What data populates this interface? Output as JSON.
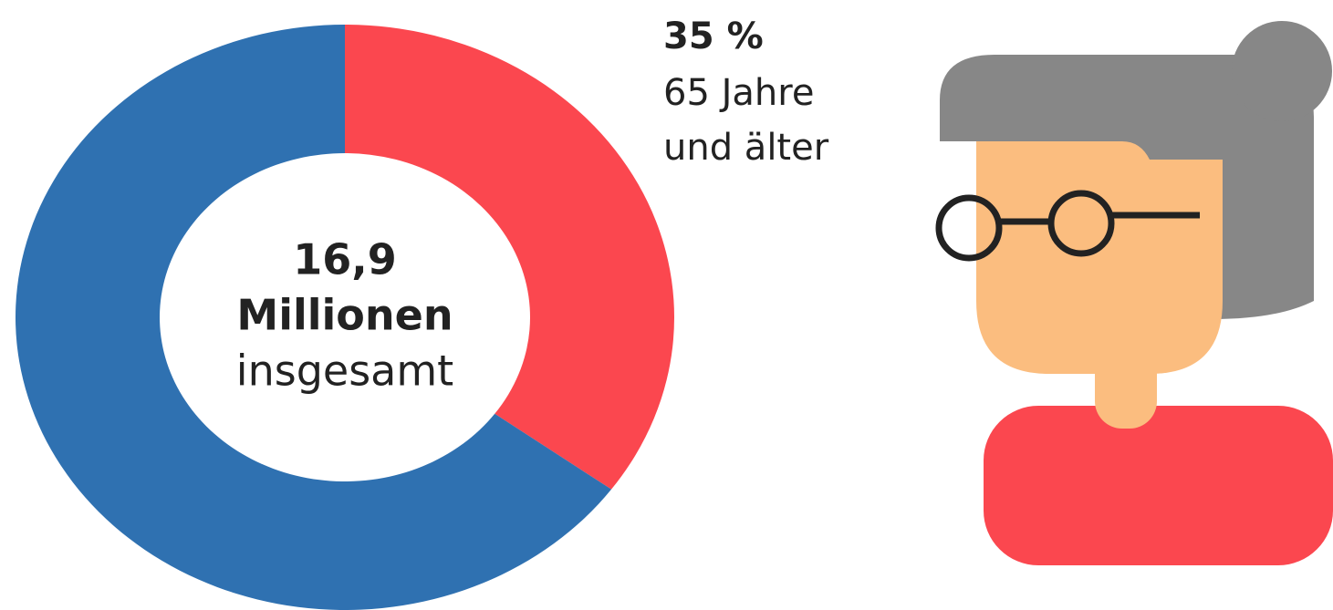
{
  "chart_data": {
    "type": "pie",
    "donut": true,
    "categories": [
      [
        "65 Jahre",
        "und älter"
      ],
      null
    ],
    "values": [
      35,
      65
    ],
    "value_labels": [
      "35 %",
      null
    ],
    "colors": [
      "#fb474f",
      "#2f71b1"
    ],
    "center_text": [
      "16,9",
      "Millionen",
      "insgesamt"
    ]
  }
}
